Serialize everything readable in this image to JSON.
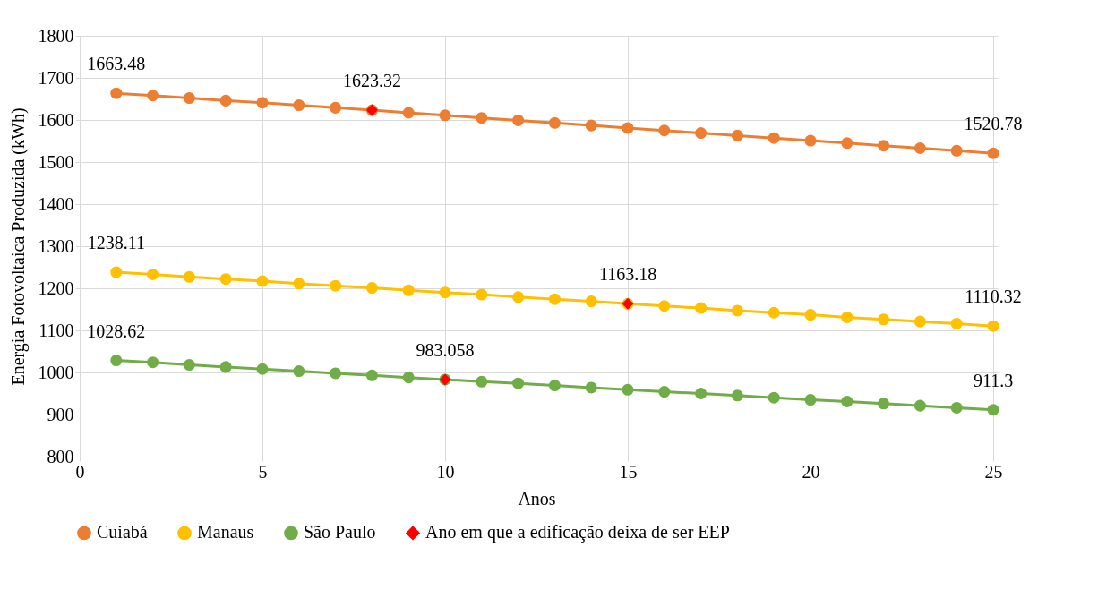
{
  "chart_data": {
    "type": "line",
    "xlabel": "Anos",
    "ylabel": "Energia Fotovoltaica Produzida (kWh)",
    "x": [
      1,
      2,
      3,
      4,
      5,
      6,
      7,
      8,
      9,
      10,
      11,
      12,
      13,
      14,
      15,
      16,
      17,
      18,
      19,
      20,
      21,
      22,
      23,
      24,
      25
    ],
    "xlim": [
      0,
      25
    ],
    "xticks": [
      0,
      5,
      10,
      15,
      20,
      25
    ],
    "ylim": [
      800,
      1800
    ],
    "yticks": [
      800,
      900,
      1000,
      1100,
      1200,
      1300,
      1400,
      1500,
      1600,
      1700,
      1800
    ],
    "grid": true,
    "legend": "bottom",
    "marker": "circle",
    "line_style": "solid",
    "series": [
      {
        "name": "Cuiabá",
        "color": "#ed7d31",
        "values": [
          1663.48,
          1658,
          1652,
          1646,
          1641,
          1635,
          1629,
          1623.32,
          1617,
          1611,
          1605,
          1599,
          1593,
          1587,
          1581,
          1575,
          1569,
          1563,
          1557,
          1551,
          1545,
          1539,
          1533,
          1527,
          1520.78
        ],
        "value_labels": [
          "1663.48",
          null,
          null,
          null,
          null,
          null,
          null,
          null,
          null,
          null,
          null,
          null,
          null,
          null,
          null,
          null,
          null,
          null,
          null,
          null,
          null,
          null,
          null,
          null,
          "1520.78"
        ]
      },
      {
        "name": "Manaus",
        "color": "#ffc000",
        "values": [
          1238.11,
          1233,
          1227,
          1222,
          1217,
          1211,
          1206,
          1201,
          1195,
          1190,
          1185,
          1179,
          1174,
          1169,
          1163.18,
          1158,
          1153,
          1147,
          1142,
          1137,
          1131,
          1126,
          1121,
          1116,
          1110.32
        ],
        "value_labels": [
          "1238.11",
          null,
          null,
          null,
          null,
          null,
          null,
          null,
          null,
          null,
          null,
          null,
          null,
          null,
          null,
          null,
          null,
          null,
          null,
          null,
          null,
          null,
          null,
          null,
          "1110.32"
        ]
      },
      {
        "name": "São Paulo",
        "color": "#70ad47",
        "values": [
          1028.62,
          1024,
          1018,
          1013,
          1008,
          1003,
          998,
          993,
          988,
          983.058,
          978,
          974,
          969,
          964,
          959,
          954,
          950,
          945,
          940,
          935,
          931,
          926,
          921,
          916,
          911.3
        ],
        "value_labels": [
          "1028.62",
          null,
          null,
          null,
          null,
          null,
          null,
          null,
          null,
          null,
          null,
          null,
          null,
          null,
          null,
          null,
          null,
          null,
          null,
          null,
          null,
          null,
          null,
          null,
          "911.3"
        ]
      },
      {
        "name": "Ano em que a edificação deixa de ser EEP",
        "type": "scatter",
        "marker": "diamond",
        "color": "#ff0000",
        "x": [
          8,
          15,
          10
        ],
        "values": [
          1623.32,
          1163.18,
          983.058
        ],
        "value_labels": [
          "1623.32",
          "1163.18",
          "983.058"
        ]
      }
    ]
  }
}
